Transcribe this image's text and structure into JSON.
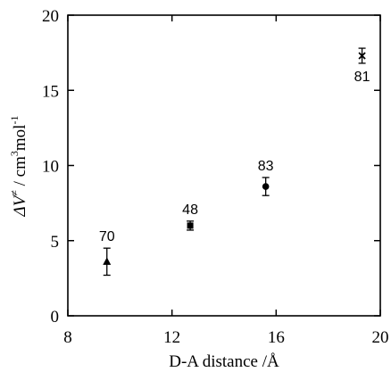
{
  "chart_data": {
    "type": "scatter",
    "title": "",
    "xlabel": "D-A distance /Å",
    "ylabel_parts": {
      "symbol": "ΔV",
      "superscript_neq": "≠",
      "unit_prefix": " / cm",
      "unit_power_3": "3",
      "unit_mid": "mol",
      "unit_power_neg1": "-1"
    },
    "xlim": [
      8,
      20
    ],
    "ylim": [
      0,
      20
    ],
    "xticks": [
      8,
      12,
      16,
      20
    ],
    "yticks": [
      0,
      5,
      10,
      15,
      20
    ],
    "grid": false,
    "points": [
      {
        "label": "70",
        "x": 9.5,
        "y": 3.6,
        "err": 0.9,
        "marker": "triangle",
        "label_position": "above"
      },
      {
        "label": "48",
        "x": 12.7,
        "y": 6.0,
        "err": 0.3,
        "marker": "square",
        "label_position": "above"
      },
      {
        "label": "83",
        "x": 15.6,
        "y": 8.6,
        "err": 0.6,
        "marker": "circle",
        "label_position": "above"
      },
      {
        "label": "81",
        "x": 19.3,
        "y": 17.3,
        "err": 0.5,
        "marker": "x",
        "label_position": "below"
      }
    ]
  }
}
